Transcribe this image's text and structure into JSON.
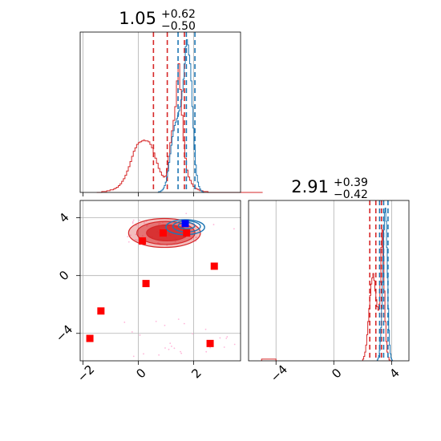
{
  "chart_data": [
    {
      "type": "histogram",
      "panel": "marginal-x",
      "title": {
        "value": "1.05",
        "plus": "+0.62",
        "minus": "−0.50"
      },
      "xlim": [
        -2.1,
        3.7
      ],
      "grid": true,
      "series": [
        {
          "color": "#d62728",
          "bin_start": -1.5,
          "bin_width": 0.06,
          "counts": [
            0,
            0,
            0,
            1,
            1,
            1,
            2,
            2,
            3,
            3,
            4,
            5,
            6,
            8,
            10,
            13,
            16,
            20,
            25,
            30,
            36,
            42,
            48,
            52,
            56,
            58,
            59,
            60,
            61,
            60,
            60,
            59,
            56,
            52,
            46,
            40,
            34,
            28,
            24,
            20,
            18,
            19,
            28,
            42,
            58,
            72,
            84,
            100,
            130,
            150,
            120,
            90,
            60,
            40,
            26,
            18,
            14,
            10,
            7,
            5,
            4,
            3,
            2,
            2,
            1,
            1,
            1,
            0,
            0,
            0,
            0,
            0,
            0,
            0,
            0,
            0,
            0,
            0,
            0,
            0,
            0,
            0,
            0,
            0,
            0,
            0,
            0,
            0,
            0,
            0,
            0,
            0,
            0,
            0,
            0,
            0,
            0,
            0,
            0,
            0
          ],
          "quantiles": [
            0.55,
            1.05,
            1.67
          ]
        },
        {
          "color": "#1f77b4",
          "bin_start": 0.7,
          "bin_width": 0.04,
          "counts": [
            0,
            1,
            1,
            2,
            3,
            5,
            8,
            12,
            18,
            25,
            35,
            45,
            55,
            65,
            72,
            78,
            82,
            86,
            90,
            95,
            100,
            108,
            118,
            132,
            150,
            170,
            178,
            172,
            160,
            150,
            130,
            100,
            75,
            50,
            32,
            20,
            12,
            7,
            4,
            2,
            1,
            0
          ],
          "quantiles": [
            1.44,
            1.74,
            2.05
          ]
        }
      ]
    },
    {
      "type": "scatter",
      "panel": "joint",
      "xlim": [
        -2.1,
        3.7
      ],
      "ylim": [
        -5.9,
        5.2
      ],
      "grid": true,
      "xticks": [
        "−2",
        "0",
        "2"
      ],
      "yticks": [
        "−4",
        "0",
        "4"
      ],
      "square_points": [
        {
          "x": 0.15,
          "y": 2.4
        },
        {
          "x": 0.9,
          "y": 2.95
        },
        {
          "x": 1.75,
          "y": 2.95
        },
        {
          "x": 0.28,
          "y": -0.55
        },
        {
          "x": 2.75,
          "y": 0.65
        },
        {
          "x": -1.35,
          "y": -2.45
        },
        {
          "x": -1.75,
          "y": -4.35
        },
        {
          "x": 2.6,
          "y": -4.7
        }
      ],
      "highlight_point": {
        "x": 1.7,
        "y": 3.6,
        "color": "#0000ff"
      },
      "contours_red": [
        {
          "cx": 1.05,
          "cy": 2.95,
          "rx": 0.75,
          "ry": 0.55,
          "opacity": 0.85
        },
        {
          "cx": 1.0,
          "cy": 2.95,
          "rx": 1.05,
          "ry": 0.8,
          "opacity": 0.5
        },
        {
          "cx": 0.95,
          "cy": 2.95,
          "rx": 1.3,
          "ry": 1.0,
          "opacity": 0.3
        }
      ],
      "contours_blue": [
        {
          "cx": 1.75,
          "cy": 3.45,
          "rx": 0.3,
          "ry": 0.22
        },
        {
          "cx": 1.75,
          "cy": 3.4,
          "rx": 0.5,
          "ry": 0.38
        },
        {
          "cx": 1.7,
          "cy": 3.35,
          "rx": 0.7,
          "ry": 0.52
        }
      ],
      "scatter_dots": {
        "color": "#ffb6d9",
        "count": 90,
        "x_range": [
          -0.5,
          3.6
        ],
        "y_range": [
          -5.8,
          4.4
        ]
      }
    },
    {
      "type": "histogram",
      "panel": "marginal-y",
      "title": {
        "value": "2.91",
        "plus": "+0.39",
        "minus": "−0.42"
      },
      "xlim": [
        -5.9,
        5.2
      ],
      "grid": true,
      "xticks": [
        "−4",
        "0",
        "4"
      ],
      "series": [
        {
          "color": "#d62728",
          "bin_start": 2.0,
          "bin_width": 0.07,
          "counts": [
            2,
            5,
            10,
            18,
            30,
            45,
            60,
            75,
            88,
            95,
            100,
            92,
            80,
            70,
            62,
            58,
            65,
            90,
            130,
            150,
            120,
            80,
            45,
            22,
            10,
            4,
            1,
            0
          ],
          "quantiles": [
            2.49,
            2.91,
            3.3
          ],
          "tail": [
            [
              -5.0,
              -4.0,
              2
            ]
          ]
        },
        {
          "color": "#1f77b4",
          "bin_start": 3.0,
          "bin_width": 0.05,
          "counts": [
            1,
            3,
            6,
            12,
            22,
            38,
            60,
            90,
            120,
            150,
            170,
            175,
            160,
            130,
            95,
            60,
            35,
            18,
            8,
            3,
            1,
            0
          ],
          "quantiles": [
            3.17,
            3.45,
            3.75
          ]
        }
      ]
    }
  ]
}
